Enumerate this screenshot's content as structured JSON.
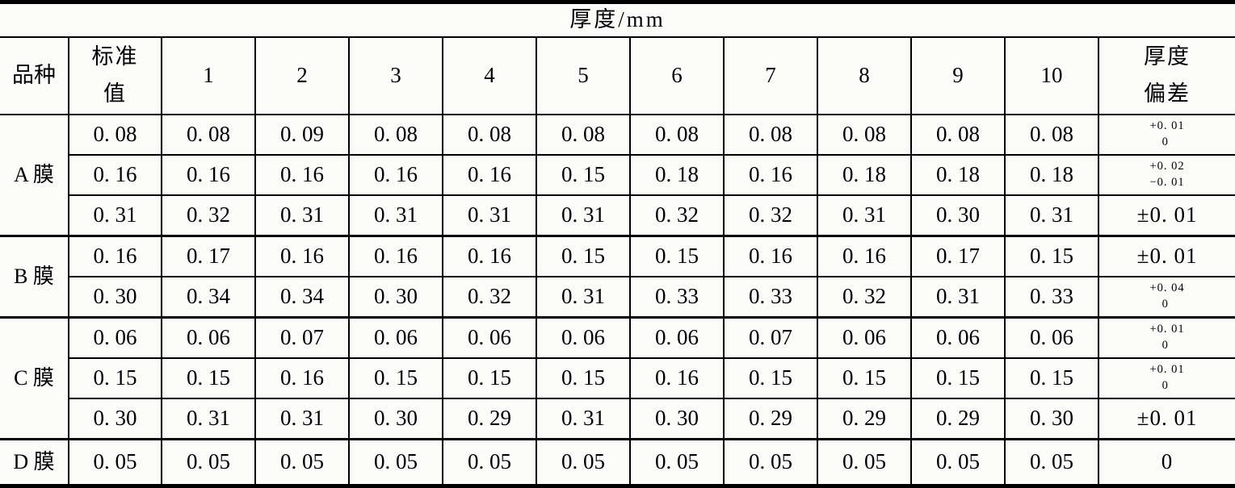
{
  "colors": {
    "ink": "#000000",
    "paper": "#fbfbfa"
  },
  "table": {
    "title": "厚度/mm",
    "header": {
      "variety": "品种",
      "standard": [
        "标准",
        "值"
      ],
      "samples": [
        "1",
        "2",
        "3",
        "4",
        "5",
        "6",
        "7",
        "8",
        "9",
        "10"
      ],
      "deviation": [
        "厚度",
        "偏差"
      ]
    },
    "groups": [
      {
        "variety": "A 膜",
        "rows": [
          {
            "standard": "0. 08",
            "values": [
              "0. 08",
              "0. 09",
              "0. 08",
              "0. 08",
              "0. 08",
              "0. 08",
              "0. 08",
              "0. 08",
              "0. 08",
              "0. 08"
            ],
            "deviation": [
              "+0. 01",
              "0"
            ]
          },
          {
            "standard": "0. 16",
            "values": [
              "0. 16",
              "0. 16",
              "0. 16",
              "0. 16",
              "0. 15",
              "0. 18",
              "0. 16",
              "0. 18",
              "0. 18",
              "0. 18"
            ],
            "deviation": [
              "+0. 02",
              "−0. 01"
            ]
          },
          {
            "standard": "0. 31",
            "values": [
              "0. 32",
              "0. 31",
              "0. 31",
              "0. 31",
              "0. 31",
              "0. 32",
              "0. 32",
              "0. 31",
              "0. 30",
              "0. 31"
            ],
            "deviation": [
              "±0. 01"
            ]
          }
        ]
      },
      {
        "variety": "B 膜",
        "rows": [
          {
            "standard": "0. 16",
            "values": [
              "0. 17",
              "0. 16",
              "0. 16",
              "0. 16",
              "0. 15",
              "0. 15",
              "0. 16",
              "0. 16",
              "0. 17",
              "0. 15"
            ],
            "deviation": [
              "±0. 01"
            ]
          },
          {
            "standard": "0. 30",
            "values": [
              "0. 34",
              "0. 34",
              "0. 30",
              "0. 32",
              "0. 31",
              "0. 33",
              "0. 33",
              "0. 32",
              "0. 31",
              "0. 33"
            ],
            "deviation": [
              "+0. 04",
              "0"
            ]
          }
        ]
      },
      {
        "variety": "C 膜",
        "rows": [
          {
            "standard": "0. 06",
            "values": [
              "0. 06",
              "0. 07",
              "0. 06",
              "0. 06",
              "0. 06",
              "0. 06",
              "0. 07",
              "0. 06",
              "0. 06",
              "0. 06"
            ],
            "deviation": [
              "+0. 01",
              "0"
            ]
          },
          {
            "standard": "0. 15",
            "values": [
              "0. 15",
              "0. 16",
              "0. 15",
              "0. 15",
              "0. 15",
              "0. 16",
              "0. 15",
              "0. 15",
              "0. 15",
              "0. 15"
            ],
            "deviation": [
              "+0. 01",
              "0"
            ]
          },
          {
            "standard": "0. 30",
            "values": [
              "0. 31",
              "0. 31",
              "0. 30",
              "0. 29",
              "0. 31",
              "0. 30",
              "0. 29",
              "0. 29",
              "0. 29",
              "0. 30"
            ],
            "deviation": [
              "±0. 01"
            ]
          }
        ]
      },
      {
        "variety": "D 膜",
        "rows": [
          {
            "standard": "0. 05",
            "values": [
              "0. 05",
              "0. 05",
              "0. 05",
              "0. 05",
              "0. 05",
              "0. 05",
              "0. 05",
              "0. 05",
              "0. 05",
              "0. 05"
            ],
            "deviation": [
              "0"
            ]
          }
        ]
      }
    ]
  }
}
